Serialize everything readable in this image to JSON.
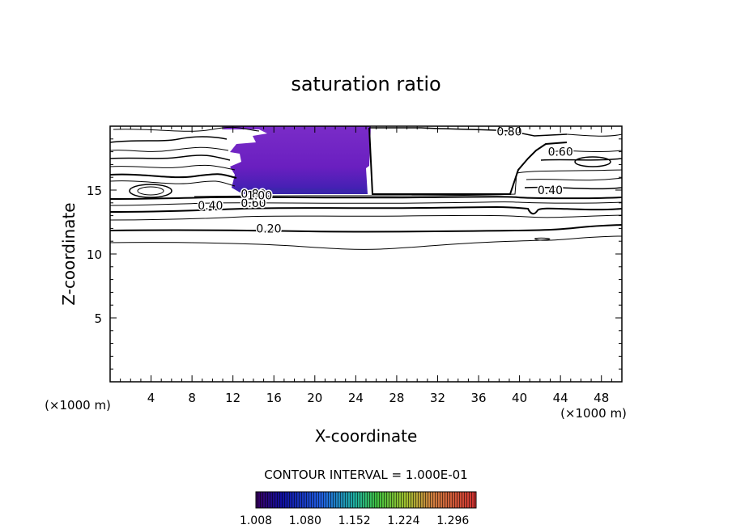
{
  "chart_data": {
    "type": "contour",
    "title": "saturation ratio",
    "xlabel": "X-coordinate",
    "ylabel": "Z-coordinate",
    "x_unit": "(×1000 m)",
    "z_unit": "(×1000 m)",
    "xlim": [
      0,
      50
    ],
    "ylim": [
      0,
      20
    ],
    "x_ticks": [
      4,
      8,
      12,
      16,
      20,
      24,
      28,
      32,
      36,
      40,
      44,
      48
    ],
    "y_ticks": [
      5,
      10,
      15
    ],
    "contour_interval_text": "CONTOUR INTERVAL = 1.000E-01",
    "contour_labels": [
      {
        "text": "0.20",
        "x": 15.5,
        "z": 12.0
      },
      {
        "text": "0.40",
        "x": 9.8,
        "z": 13.8
      },
      {
        "text": "0.60",
        "x": 14.0,
        "z": 14.0
      },
      {
        "text": "0.80",
        "x": 14.0,
        "z": 14.7
      },
      {
        "text": "1.00",
        "x": 14.6,
        "z": 14.6
      },
      {
        "text": "0.40",
        "x": 43.0,
        "z": 15.0
      },
      {
        "text": "0.60",
        "x": 44.0,
        "z": 18.0
      },
      {
        "text": "0.80",
        "x": 39.0,
        "z": 19.6
      }
    ],
    "colorbar": {
      "ticks": [
        "1.008",
        "1.080",
        "1.152",
        "1.224",
        "1.296"
      ],
      "min": 1.008,
      "max": 1.33
    },
    "supersaturated_region": {
      "x_range": [
        11.6,
        25
      ],
      "z_range": [
        14.5,
        20
      ],
      "value_range": [
        1.008,
        1.06
      ]
    },
    "grid": false
  }
}
